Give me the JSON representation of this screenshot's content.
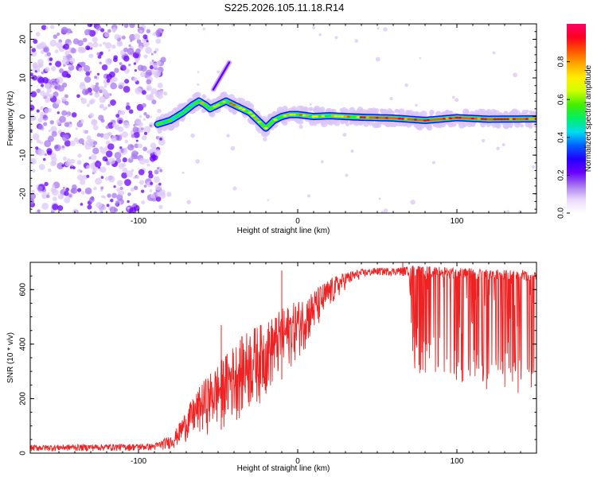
{
  "title": "S225.2026.105.11.18.R14",
  "chart_data": [
    {
      "type": "heatmap",
      "xlabel": "Height of straight line (km)",
      "ylabel": "Frequency (Hz)",
      "xlim": [
        -168,
        150
      ],
      "ylim": [
        -25,
        24
      ],
      "xticks": [
        -100,
        0,
        100
      ],
      "yticks": [
        -20,
        -10,
        0,
        10,
        20
      ],
      "colorbar": {
        "label": "Normalized spectral amplitude",
        "range": [
          0,
          1
        ],
        "ticks": [
          0.0,
          0.2,
          0.4,
          0.6,
          0.8
        ],
        "colors": [
          "#ffffff",
          "#e9d8fb",
          "#a878f0",
          "#6a00ff",
          "#2200ff",
          "#0060ff",
          "#00ddee",
          "#00ee66",
          "#44ee00",
          "#ccff00",
          "#ffee00",
          "#ffaa00",
          "#ff5500",
          "#ff0022",
          "#ff0066"
        ]
      },
      "ridge": {
        "x": [
          -88,
          -80,
          -72,
          -66,
          -62,
          -58,
          -55,
          -50,
          -45,
          -40,
          -35,
          -30,
          -25,
          -20,
          -15,
          -10,
          -5,
          0,
          10,
          20,
          40,
          60,
          80,
          100,
          120,
          150
        ],
        "freq": [
          -2,
          -1,
          1,
          3,
          4,
          3,
          2,
          3,
          4,
          3,
          2,
          1,
          -1,
          -3,
          -1,
          0,
          0.5,
          0.5,
          0,
          0.2,
          -0.2,
          -0.4,
          -1,
          -0.3,
          -0.7,
          -0.6
        ]
      },
      "branch": {
        "x": [
          -53,
          -43
        ],
        "freq": [
          7,
          14
        ]
      }
    },
    {
      "type": "line",
      "xlabel": "Height of straight line (km)",
      "ylabel": "SNR (10 * v/v)",
      "xlim": [
        -168,
        150
      ],
      "ylim": [
        0,
        700
      ],
      "xticks": [
        -100,
        0,
        100
      ],
      "yticks": [
        0,
        200,
        400,
        600
      ],
      "color": "#ee2222",
      "envelope": {
        "x": [
          -168,
          -90,
          -78,
          -70,
          -60,
          -50,
          -40,
          -30,
          -20,
          -10,
          0,
          10,
          20,
          30,
          40,
          50,
          60,
          70,
          72,
          100,
          150
        ],
        "low": [
          5,
          8,
          15,
          40,
          60,
          80,
          110,
          140,
          200,
          270,
          340,
          420,
          520,
          600,
          640,
          650,
          650,
          650,
          300,
          250,
          200
        ],
        "high": [
          30,
          35,
          70,
          160,
          260,
          330,
          400,
          460,
          480,
          530,
          560,
          600,
          640,
          665,
          675,
          680,
          680,
          685,
          690,
          680,
          670
        ]
      },
      "spikes": [
        {
          "x": -48,
          "y": 470
        },
        {
          "x": -10,
          "y": 670
        },
        {
          "x": 66,
          "y": 700
        }
      ]
    }
  ]
}
